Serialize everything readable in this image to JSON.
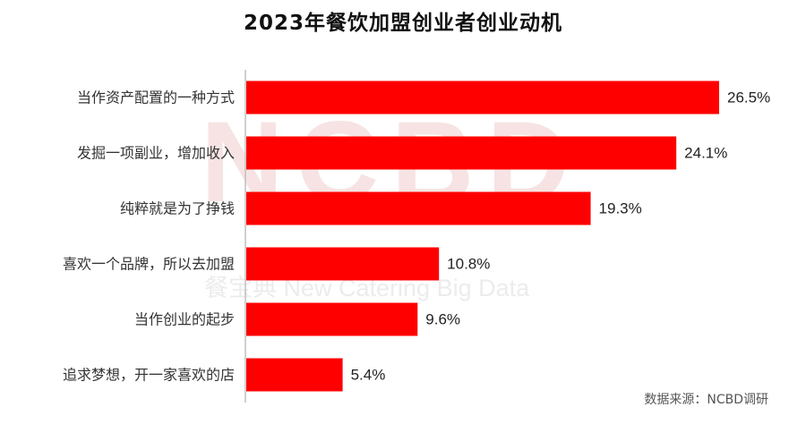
{
  "chart_data": {
    "type": "bar",
    "orientation": "horizontal",
    "title": "2023年餐饮加盟创业者创业动机",
    "categories": [
      "当作资产配置的一种方式",
      "发掘一项副业，增加收入",
      "纯粹就是为了挣钱",
      "喜欢一个品牌，所以去加盟",
      "当作创业的起步",
      "追求梦想，开一家喜欢的店"
    ],
    "values": [
      26.5,
      24.1,
      19.3,
      10.8,
      9.6,
      5.4
    ],
    "value_labels": [
      "26.5%",
      "24.1%",
      "19.3%",
      "10.8%",
      "9.6%",
      "5.4%"
    ],
    "unit": "%",
    "xlim": [
      0,
      30
    ],
    "grid": false,
    "legend": "none",
    "bar_color": "#ff0000",
    "source": "数据来源：NCBD调研"
  },
  "watermark": {
    "logo_text": "NCBD",
    "subtitle": "餐宝典 New Catering Big Data"
  }
}
